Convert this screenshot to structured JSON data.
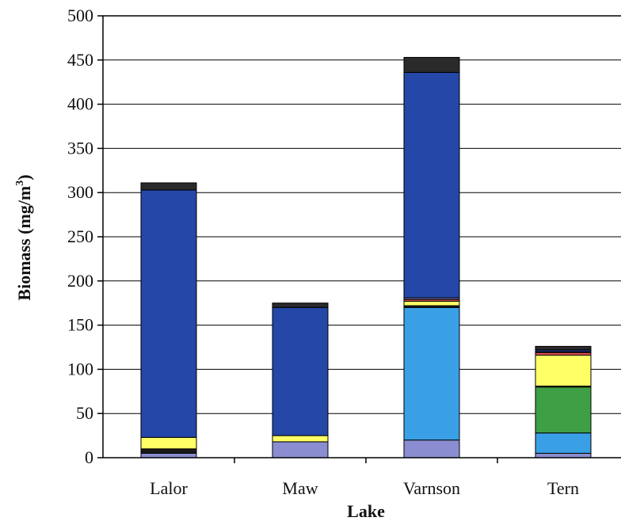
{
  "chart_data": {
    "type": "bar",
    "stacked": true,
    "categories": [
      "Lalor",
      "Maw",
      "Varnson",
      "Tern"
    ],
    "xlabel": "Lake",
    "ylabel": "Biomass (mg/m",
    "ylabel_superscript": "3",
    "ylabel_close": ")",
    "ylim": [
      0,
      500
    ],
    "yticks": [
      0,
      50,
      100,
      150,
      200,
      250,
      300,
      350,
      400,
      450,
      500
    ],
    "grid": true,
    "series": [
      {
        "color": "#8a8ed0",
        "values": [
          5,
          18,
          20,
          5
        ]
      },
      {
        "color": "#3aa0e6",
        "values": [
          0,
          0,
          150,
          23
        ]
      },
      {
        "color": "#3f9f45",
        "values": [
          0,
          0,
          0,
          52
        ]
      },
      {
        "color": "#1a1a1a",
        "values": [
          5,
          0,
          2,
          1
        ]
      },
      {
        "color": "#ffff66",
        "values": [
          13,
          7,
          5,
          35
        ]
      },
      {
        "color": "#e05050",
        "values": [
          0,
          0,
          2,
          3
        ]
      },
      {
        "color": "#6a6aa0",
        "values": [
          0,
          0,
          2,
          1
        ]
      },
      {
        "color": "#2447a8",
        "values": [
          280,
          145,
          255,
          2
        ]
      },
      {
        "color": "#2a2a2a",
        "values": [
          8,
          5,
          17,
          4
        ]
      }
    ]
  }
}
